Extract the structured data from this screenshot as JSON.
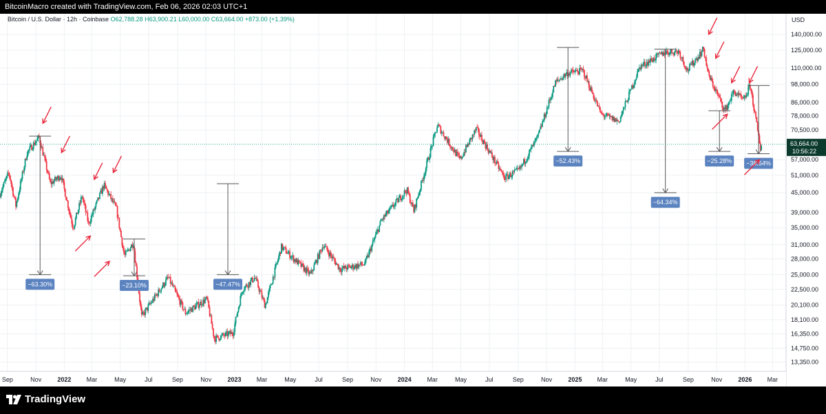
{
  "header": {
    "credit": "BitcoinMacro created with TradingView.com, Feb 06, 2026 02:03 UTC+1"
  },
  "legend": {
    "symbol": "Bitcoin / U.S. Dollar · 12h · Coinbase",
    "open": "O62,788.28",
    "high": "H63,900.21",
    "low": "L60,000.00",
    "close": "C63,664.00",
    "change": "+873.00 (+1.39%)"
  },
  "footer": {
    "brand": "TradingView"
  },
  "colors": {
    "up": "#089981",
    "down": "#f23645",
    "arrow": "#e8283c",
    "callout": "#5b83c0",
    "price_label_bg": "#0c3b2e",
    "measure_line": "#555555"
  },
  "chart_data": {
    "type": "candlestick",
    "currency": "USD",
    "y_scale": "log",
    "ylim": [
      12500,
      150000
    ],
    "y_ticks": [
      140000,
      125000,
      110000,
      98000,
      86000,
      78000,
      70500,
      57000,
      51000,
      45000,
      39000,
      35000,
      31000,
      28000,
      25000,
      22500,
      20100,
      18100,
      16350,
      14750,
      13350
    ],
    "x_ticks": [
      "Sep",
      "Nov",
      "2022",
      "Mar",
      "May",
      "Jul",
      "Sep",
      "Nov",
      "2023",
      "Mar",
      "May",
      "Jul",
      "Sep",
      "Nov",
      "2024",
      "Mar",
      "May",
      "Jul",
      "Sep",
      "Nov",
      "2025",
      "Mar",
      "May",
      "Jul",
      "Sep",
      "Nov",
      "2026",
      "Mar"
    ],
    "x_bold": [
      "2022",
      "2023",
      "2024",
      "2025",
      "2026"
    ],
    "x_range": [
      "2021-08-16",
      "2026-03-30"
    ],
    "last_price": {
      "value": 63664,
      "label": "63,664.00",
      "countdown": "10:56:22"
    },
    "price_path": [
      [
        "2021-08-16",
        44000
      ],
      [
        "2021-09-06",
        52000
      ],
      [
        "2021-09-21",
        41000
      ],
      [
        "2021-10-15",
        60000
      ],
      [
        "2021-11-10",
        67000
      ],
      [
        "2021-12-04",
        48000
      ],
      [
        "2021-12-27",
        51000
      ],
      [
        "2022-01-22",
        35000
      ],
      [
        "2022-02-10",
        44000
      ],
      [
        "2022-02-24",
        36000
      ],
      [
        "2022-03-29",
        47500
      ],
      [
        "2022-04-25",
        40000
      ],
      [
        "2022-05-12",
        28500
      ],
      [
        "2022-05-31",
        31500
      ],
      [
        "2022-06-18",
        18500
      ],
      [
        "2022-08-14",
        24500
      ],
      [
        "2022-09-20",
        19000
      ],
      [
        "2022-11-05",
        21000
      ],
      [
        "2022-11-21",
        15800
      ],
      [
        "2022-12-31",
        16500
      ],
      [
        "2023-01-20",
        22500
      ],
      [
        "2023-02-16",
        24500
      ],
      [
        "2023-03-10",
        20000
      ],
      [
        "2023-04-14",
        30500
      ],
      [
        "2023-06-15",
        25000
      ],
      [
        "2023-07-13",
        31000
      ],
      [
        "2023-08-18",
        26000
      ],
      [
        "2023-10-10",
        27000
      ],
      [
        "2023-11-15",
        37000
      ],
      [
        "2024-01-08",
        46000
      ],
      [
        "2024-01-23",
        39500
      ],
      [
        "2024-03-14",
        73000
      ],
      [
        "2024-05-01",
        57000
      ],
      [
        "2024-06-05",
        71000
      ],
      [
        "2024-08-05",
        50000
      ],
      [
        "2024-09-06",
        53000
      ],
      [
        "2024-10-15",
        67000
      ],
      [
        "2024-11-22",
        99000
      ],
      [
        "2024-12-17",
        106000
      ],
      [
        "2025-01-20",
        108000
      ],
      [
        "2025-02-28",
        79000
      ],
      [
        "2025-04-07",
        75000
      ],
      [
        "2025-05-22",
        111000
      ],
      [
        "2025-07-14",
        123000
      ],
      [
        "2025-08-14",
        124000
      ],
      [
        "2025-09-01",
        108000
      ],
      [
        "2025-10-06",
        126000
      ],
      [
        "2025-10-16",
        105000
      ],
      [
        "2025-11-21",
        81000
      ],
      [
        "2025-12-10",
        93000
      ],
      [
        "2025-12-31",
        87000
      ],
      [
        "2026-01-14",
        97000
      ],
      [
        "2026-02-05",
        62000
      ],
      [
        "2026-02-06",
        63664
      ]
    ],
    "drawdowns": [
      {
        "label": "−63.30%",
        "date": "2021-11-10",
        "from": 67500,
        "to": 25000
      },
      {
        "label": "−23.10%",
        "date": "2022-05-31",
        "from": 32300,
        "to": 24800
      },
      {
        "label": "−47.47%",
        "date": "2022-12-18",
        "from": 48000,
        "to": 25000
      },
      {
        "label": "−52.43%",
        "date": "2024-12-17",
        "from": 127500,
        "to": 60500
      },
      {
        "label": "−64.34%",
        "date": "2025-07-14",
        "from": 126000,
        "to": 45000
      },
      {
        "label": "−25.28%",
        "date": "2025-11-07",
        "from": 81000,
        "to": 60500
      },
      {
        "label": "−38.54%",
        "date": "2026-01-30",
        "from": 97000,
        "to": 59500
      }
    ],
    "arrows": [
      {
        "date": "2021-11-16",
        "value": 74000,
        "dir": "down"
      },
      {
        "date": "2021-12-26",
        "value": 60000,
        "dir": "down"
      },
      {
        "date": "2022-03-06",
        "value": 49500,
        "dir": "down"
      },
      {
        "date": "2022-02-26",
        "value": 33000,
        "dir": "up"
      },
      {
        "date": "2022-04-16",
        "value": 52000,
        "dir": "down"
      },
      {
        "date": "2022-04-08",
        "value": 27500,
        "dir": "up"
      },
      {
        "date": "2025-10-15",
        "value": 140000,
        "dir": "down"
      },
      {
        "date": "2025-10-30",
        "value": 118000,
        "dir": "down"
      },
      {
        "date": "2025-12-03",
        "value": 99000,
        "dir": "down"
      },
      {
        "date": "2025-11-24",
        "value": 79000,
        "dir": "up"
      },
      {
        "date": "2026-01-10",
        "value": 99000,
        "dir": "down"
      },
      {
        "date": "2026-02-01",
        "value": 57000,
        "dir": "up"
      }
    ]
  }
}
